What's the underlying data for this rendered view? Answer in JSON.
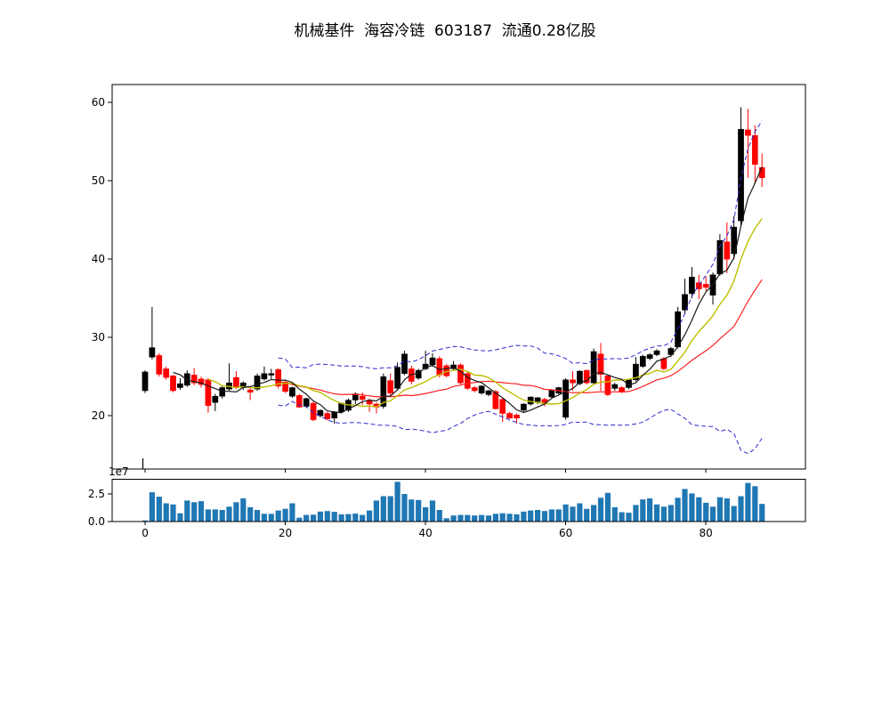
{
  "title": "机械基件  海容冷链  603187  流通0.28亿股",
  "colors": {
    "up_candle": "#000000",
    "down_candle": "#ff0000",
    "ma5": "#1a1a1a",
    "ma10": "#bfbf00",
    "ma20": "#ff2020",
    "bollinger": "#2b2bd0",
    "volume_bar": "#1f77b4",
    "axis": "#000000",
    "background": "#ffffff"
  },
  "chart_data": {
    "type": "candlestick+volume",
    "title": "机械基件  海容冷链  603187  流通0.28亿股",
    "price_axis": {
      "tick_labels": [
        "20",
        "30",
        "40",
        "50",
        "60"
      ],
      "tick_values": [
        20,
        30,
        40,
        50,
        60
      ],
      "ylim": [
        13.2,
        62.3
      ],
      "grid": false
    },
    "x_axis": {
      "tick_labels": [
        "0",
        "20",
        "40",
        "60",
        "80"
      ],
      "tick_values": [
        0,
        20,
        40,
        60,
        80
      ],
      "xlim": [
        -4.7,
        94.2
      ]
    },
    "volume_axis": {
      "tick_labels": [
        "0.0",
        "2.5"
      ],
      "tick_values": [
        0.0,
        2.5
      ],
      "offset_label": "1e7",
      "ylim_1e7": [
        0,
        3.83
      ]
    },
    "overlays": [
      {
        "name": "MA5",
        "window": 5,
        "style": "solid",
        "color_key": "ma5"
      },
      {
        "name": "MA10",
        "window": 10,
        "style": "solid",
        "color_key": "ma10"
      },
      {
        "name": "MA20",
        "window": 20,
        "style": "solid",
        "color_key": "ma20"
      },
      {
        "name": "Bollinger ±2σ (20)",
        "window": 20,
        "style": "dashed",
        "color_key": "bollinger"
      }
    ],
    "candles_ohlc": [
      [
        23.2,
        25.8,
        22.9,
        25.6
      ],
      [
        27.5,
        33.9,
        27.2,
        28.7
      ],
      [
        27.7,
        28.0,
        25.0,
        25.3
      ],
      [
        26.0,
        26.3,
        24.6,
        24.9
      ],
      [
        25.1,
        25.2,
        23.0,
        23.2
      ],
      [
        23.6,
        24.8,
        23.3,
        24.1
      ],
      [
        23.9,
        25.8,
        23.7,
        25.4
      ],
      [
        25.2,
        26.1,
        23.9,
        24.2
      ],
      [
        24.7,
        25.0,
        23.6,
        24.0
      ],
      [
        24.6,
        24.8,
        20.4,
        21.3
      ],
      [
        21.7,
        22.8,
        20.6,
        22.5
      ],
      [
        22.5,
        23.8,
        22.2,
        23.6
      ],
      [
        23.4,
        26.7,
        23.2,
        24.2
      ],
      [
        24.9,
        25.7,
        23.4,
        23.6
      ],
      [
        23.6,
        24.4,
        23.3,
        24.2
      ],
      [
        23.3,
        23.8,
        22.0,
        23.0
      ],
      [
        23.4,
        25.4,
        23.2,
        25.1
      ],
      [
        24.7,
        26.3,
        24.5,
        25.4
      ],
      [
        25.2,
        26.0,
        24.7,
        25.4
      ],
      [
        25.9,
        26.1,
        23.5,
        23.8
      ],
      [
        24.3,
        24.6,
        22.9,
        23.1
      ],
      [
        22.5,
        23.7,
        22.3,
        23.6
      ],
      [
        22.6,
        22.8,
        21.0,
        21.1
      ],
      [
        21.2,
        22.3,
        21.0,
        22.2
      ],
      [
        21.6,
        21.8,
        19.3,
        19.5
      ],
      [
        20.0,
        20.8,
        19.8,
        20.7
      ],
      [
        20.3,
        20.5,
        19.4,
        19.6
      ],
      [
        19.7,
        20.6,
        19.0,
        20.5
      ],
      [
        20.5,
        21.7,
        20.3,
        21.6
      ],
      [
        20.7,
        22.2,
        20.5,
        22.0
      ],
      [
        22.0,
        23.0,
        21.5,
        22.8
      ],
      [
        22.5,
        23.0,
        21.4,
        22.1
      ],
      [
        22.0,
        22.2,
        20.5,
        21.5
      ],
      [
        21.5,
        21.7,
        20.3,
        21.1
      ],
      [
        21.2,
        25.4,
        20.9,
        25.0
      ],
      [
        24.5,
        25.4,
        22.5,
        22.9
      ],
      [
        23.5,
        26.8,
        23.2,
        26.2
      ],
      [
        25.4,
        28.3,
        25.2,
        27.9
      ],
      [
        26.0,
        26.4,
        24.0,
        24.4
      ],
      [
        24.8,
        26.0,
        24.6,
        25.8
      ],
      [
        26.0,
        28.3,
        25.8,
        26.6
      ],
      [
        26.5,
        28.0,
        26.3,
        27.4
      ],
      [
        27.3,
        27.6,
        24.9,
        25.2
      ],
      [
        26.4,
        26.6,
        24.9,
        25.1
      ],
      [
        26.0,
        27.0,
        25.8,
        26.5
      ],
      [
        26.5,
        26.7,
        24.0,
        24.2
      ],
      [
        25.4,
        25.6,
        23.3,
        23.5
      ],
      [
        23.6,
        23.8,
        23.0,
        23.2
      ],
      [
        22.9,
        23.9,
        22.7,
        23.8
      ],
      [
        22.7,
        23.3,
        22.5,
        23.2
      ],
      [
        23.1,
        23.3,
        20.8,
        20.9
      ],
      [
        22.1,
        22.3,
        19.2,
        20.3
      ],
      [
        20.3,
        20.5,
        19.6,
        19.7
      ],
      [
        20.1,
        20.3,
        19.0,
        19.7
      ],
      [
        20.7,
        21.6,
        20.5,
        21.5
      ],
      [
        21.5,
        22.5,
        21.3,
        22.4
      ],
      [
        21.8,
        22.4,
        21.5,
        22.3
      ],
      [
        22.1,
        22.3,
        21.2,
        21.7
      ],
      [
        22.4,
        23.4,
        22.2,
        23.3
      ],
      [
        22.9,
        23.7,
        22.7,
        23.6
      ],
      [
        19.8,
        24.8,
        19.5,
        24.6
      ],
      [
        24.6,
        25.7,
        23.2,
        24.2
      ],
      [
        24.1,
        25.8,
        23.9,
        25.7
      ],
      [
        25.8,
        25.9,
        24.0,
        24.2
      ],
      [
        24.2,
        28.6,
        24.0,
        28.2
      ],
      [
        27.9,
        29.3,
        23.2,
        25.3
      ],
      [
        25.1,
        25.3,
        22.5,
        22.7
      ],
      [
        23.5,
        24.2,
        23.2,
        24.0
      ],
      [
        23.6,
        23.8,
        22.9,
        23.1
      ],
      [
        23.6,
        24.7,
        23.4,
        24.6
      ],
      [
        24.6,
        27.5,
        24.4,
        26.6
      ],
      [
        26.3,
        27.8,
        26.1,
        27.6
      ],
      [
        27.3,
        28.0,
        27.1,
        27.8
      ],
      [
        27.8,
        28.5,
        27.6,
        28.3
      ],
      [
        27.3,
        27.5,
        25.8,
        26.0
      ],
      [
        27.8,
        28.8,
        27.5,
        28.6
      ],
      [
        28.8,
        33.9,
        28.6,
        33.3
      ],
      [
        33.5,
        37.5,
        33.0,
        35.5
      ],
      [
        35.6,
        39.0,
        35.0,
        37.7
      ],
      [
        37.0,
        38.0,
        34.9,
        36.2
      ],
      [
        36.8,
        37.8,
        35.9,
        36.4
      ],
      [
        35.4,
        38.3,
        34.2,
        38.0
      ],
      [
        38.1,
        43.2,
        37.9,
        42.4
      ],
      [
        42.2,
        44.7,
        38.2,
        40.0
      ],
      [
        40.7,
        45.5,
        40.0,
        44.1
      ],
      [
        44.9,
        59.4,
        44.3,
        56.6
      ],
      [
        56.5,
        59.2,
        50.4,
        55.8
      ],
      [
        55.8,
        57.1,
        49.6,
        52.1
      ],
      [
        51.7,
        53.5,
        49.2,
        50.4
      ]
    ],
    "volumes_1e7": [
      0.1,
      2.65,
      2.25,
      1.65,
      1.55,
      0.75,
      1.9,
      1.75,
      1.85,
      1.1,
      1.1,
      1.05,
      1.35,
      1.75,
      2.1,
      1.3,
      1.05,
      0.7,
      0.7,
      1.0,
      1.15,
      1.65,
      0.35,
      0.6,
      0.62,
      0.9,
      0.95,
      0.88,
      0.65,
      0.68,
      0.72,
      0.6,
      1.0,
      1.9,
      2.3,
      2.3,
      3.6,
      2.5,
      2.0,
      1.95,
      1.3,
      1.9,
      1.05,
      0.3,
      0.55,
      0.6,
      0.6,
      0.55,
      0.6,
      0.55,
      0.7,
      0.75,
      0.7,
      0.65,
      0.9,
      1.0,
      1.05,
      0.95,
      1.1,
      1.1,
      1.55,
      1.35,
      1.65,
      1.15,
      1.5,
      2.15,
      2.6,
      1.3,
      0.85,
      0.8,
      1.5,
      2.0,
      2.1,
      1.55,
      1.35,
      1.5,
      2.15,
      2.95,
      2.55,
      2.2,
      1.7,
      1.35,
      2.2,
      2.1,
      1.4,
      2.3,
      3.5,
      3.2,
      1.6
    ]
  }
}
